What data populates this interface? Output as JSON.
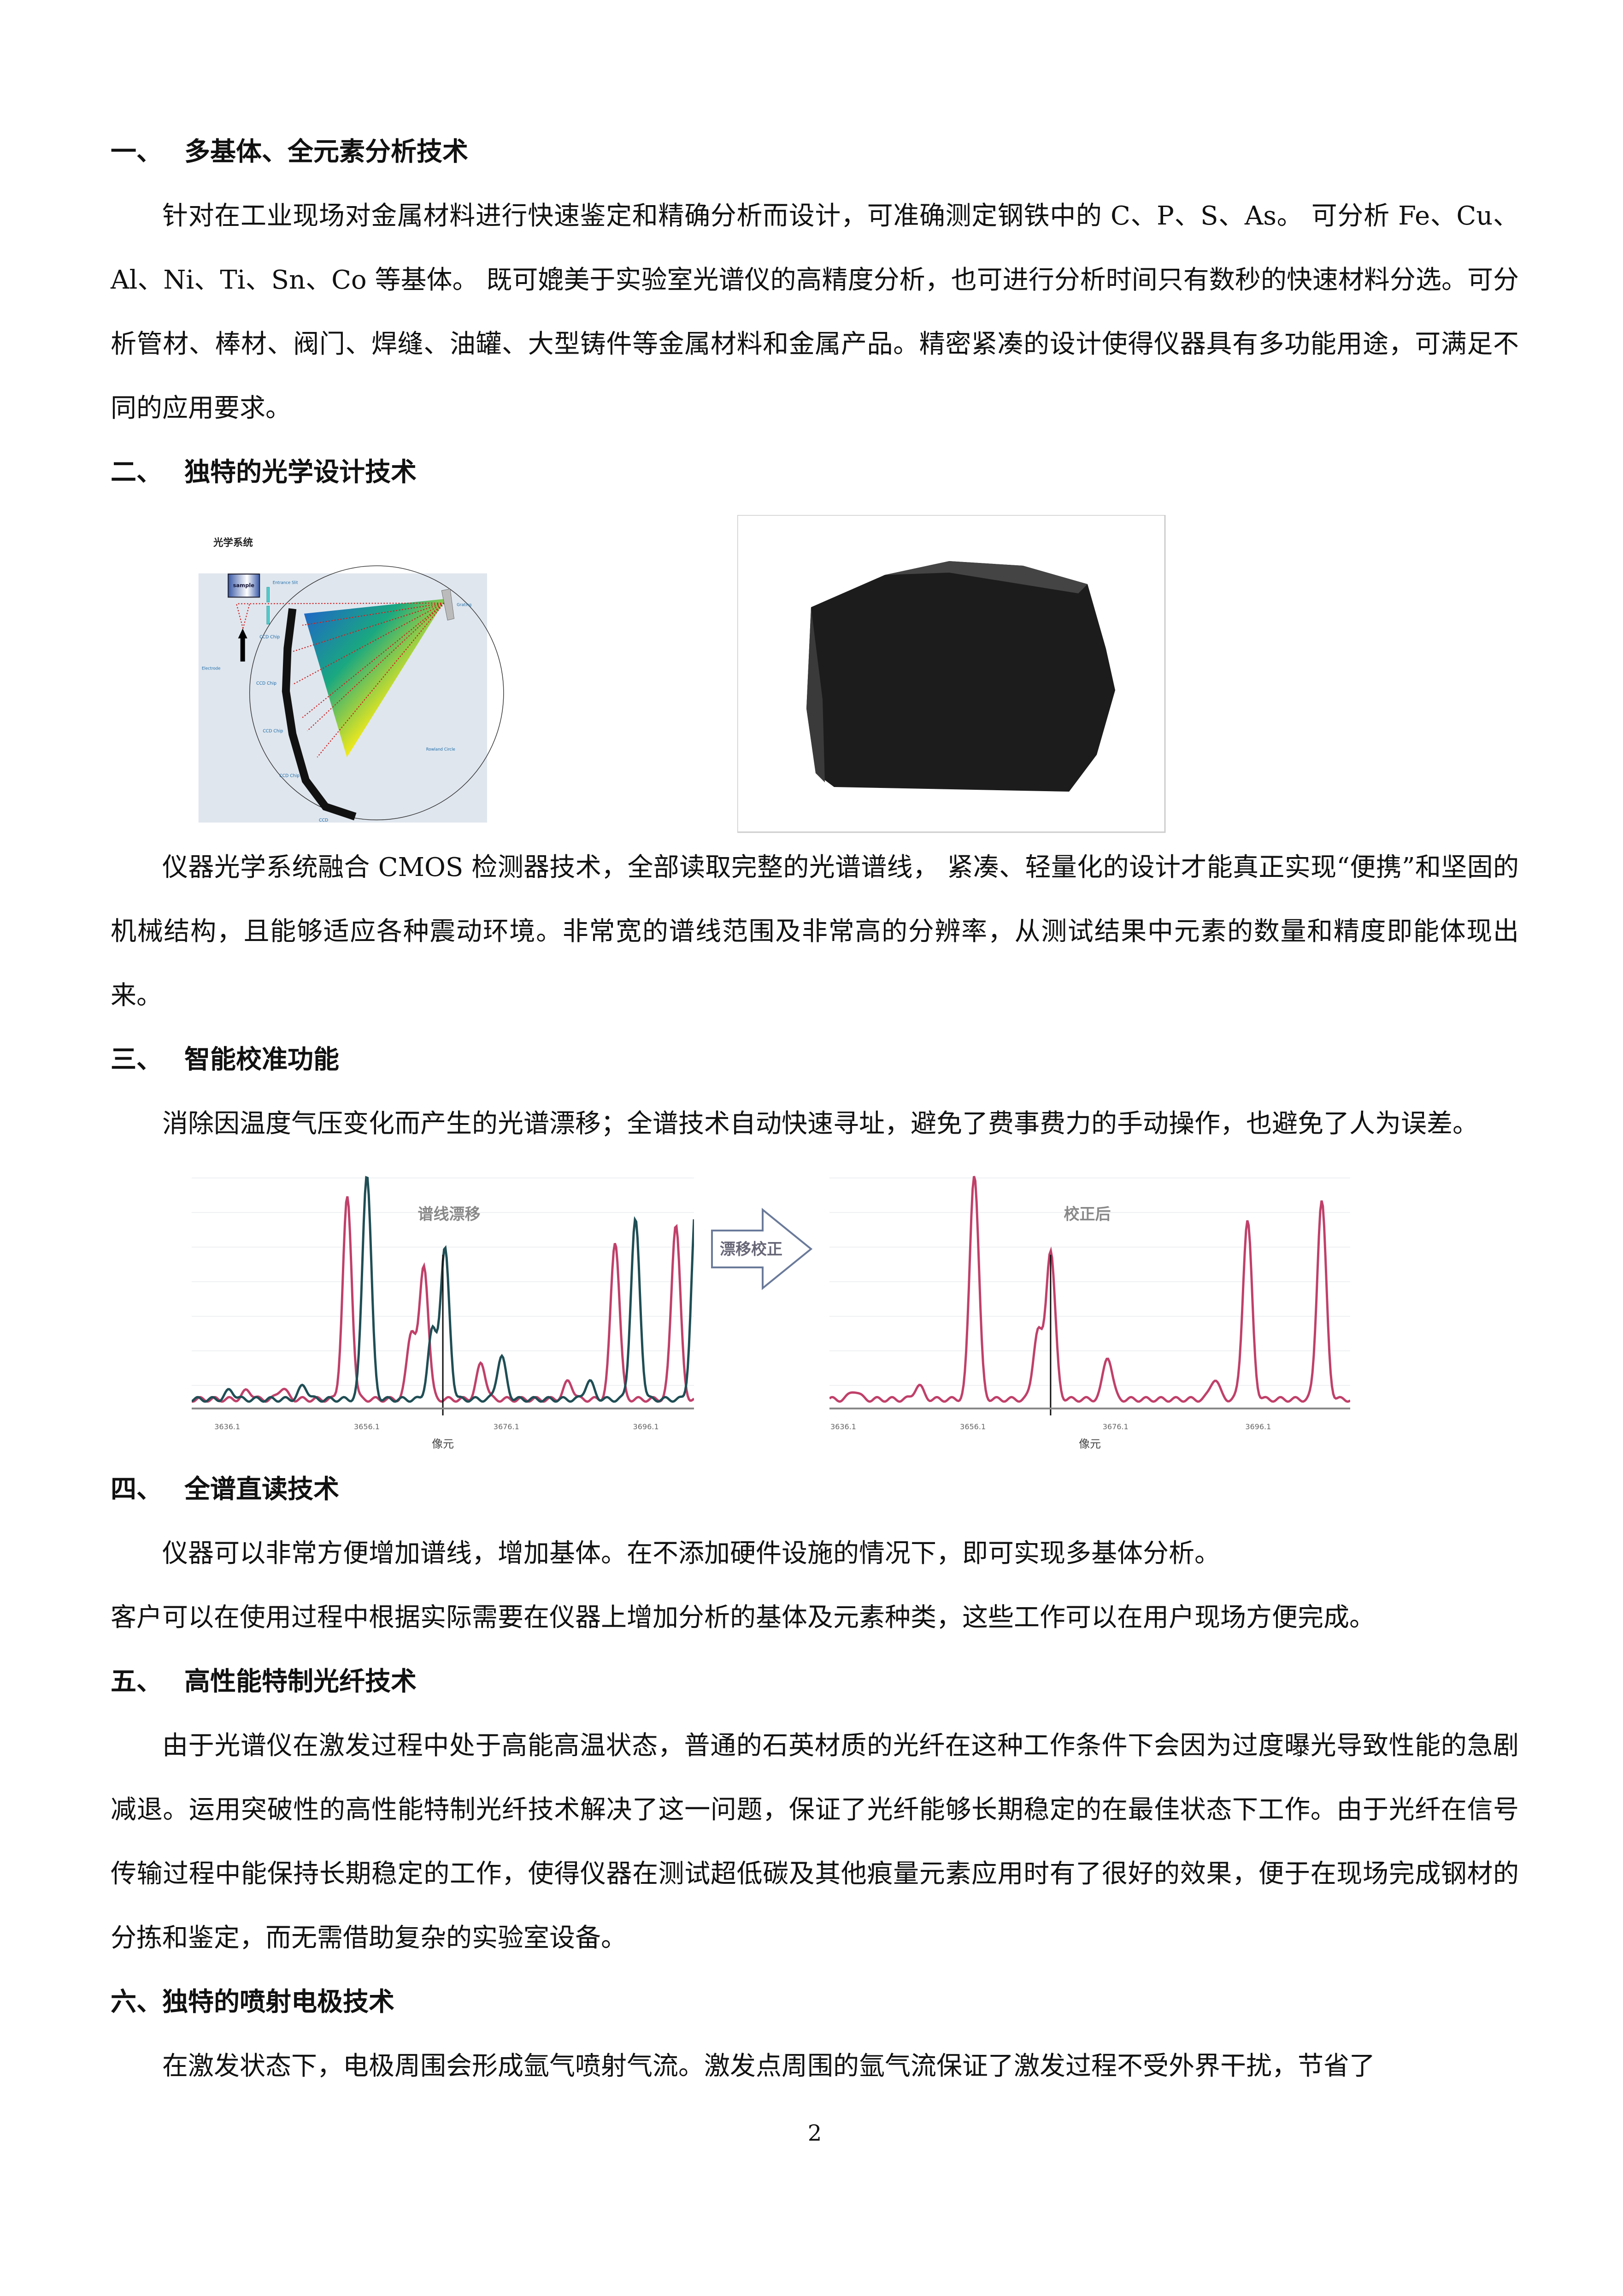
{
  "sections": [
    {
      "num": "一、",
      "title": "多基体、全元素分析技术",
      "paras": [
        "针对在工业现场对金属材料进行快速鉴定和精确分析而设计，可准确测定钢铁中的 C、P、S、As。 可分析 Fe、Cu、Al、Ni、Ti、Sn、Co 等基体。 既可媲美于实验室光谱仪的高精度分析，也可进行分析时间只有数秒的快速材料分选。可分析管材、棒材、阀门、焊缝、油罐、大型铸件等金属材料和金属产品。精密紧凑的设计使得仪器具有多功能用途，可满足不同的应用要求。"
      ]
    },
    {
      "num": "二、",
      "title": "独特的光学设计技术",
      "paras": [
        "仪器光学系统融合 CMOS 检测器技术，全部读取完整的光谱谱线， 紧凑、轻量化的设计才能真正实现“便携”和坚固的机械结构，且能够适应各种震动环境。非常宽的谱线范围及非常高的分辨率，从测试结果中元素的数量和精度即能体现出来。"
      ]
    },
    {
      "num": "三、",
      "title": "智能校准功能",
      "paras": [
        "消除因温度气压变化而产生的光谱漂移；全谱技术自动快速寻址，避免了费事费力的手动操作，也避免了人为误差。"
      ]
    },
    {
      "num": "四、",
      "title": "全谱直读技术",
      "paras": [
        "仪器可以非常方便增加谱线，增加基体。在不添加硬件设施的情况下，即可实现多基体分析。",
        "客户可以在使用过程中根据实际需要在仪器上增加分析的基体及元素种类，这些工作可以在用户现场方便完成。"
      ]
    },
    {
      "num": "五、",
      "title": "高性能特制光纤技术",
      "paras": [
        "由于光谱仪在激发过程中处于高能高温状态，普通的石英材质的光纤在这种工作条件下会因为过度曝光导致性能的急剧减退。运用突破性的高性能特制光纤技术解决了这一问题，保证了光纤能够长期稳定的在最佳状态下工作。由于光纤在信号传输过程中能保持长期稳定的工作，使得仪器在测试超低碳及其他痕量元素应用时有了很好的效果，便于在现场完成钢材的分拣和鉴定，而无需借助复杂的实验室设备。"
      ]
    },
    {
      "num": "六、",
      "title": "独特的喷射电极技术",
      "paras": [
        "在激发状态下，电极周围会形成氩气喷射气流。激发点周围的氩气流保证了激发过程不受外界干扰，节省了"
      ]
    }
  ],
  "optics_figure": {
    "title": "光学系统",
    "labels": {
      "sample": "sample",
      "slit": "Entrance Slit",
      "grating": "Grating",
      "electrode": "Electrode",
      "ccd": "CCD Chip",
      "ccd_last": "CCD",
      "rowland": "Rowland Circle"
    }
  },
  "chart_data": [
    {
      "type": "line",
      "title": "谱线漂移",
      "xlabel": "像元",
      "xticks": [
        "3636.1",
        "3656.1",
        "3676.1",
        "3696.1"
      ],
      "xlim": [
        3631,
        3703
      ],
      "series": [
        {
          "color": "#c0406a",
          "peaks": [
            [
              3639,
              0.04
            ],
            [
              3644,
              0.05
            ],
            [
              3653.3,
              0.89
            ],
            [
              3664.3,
              0.59
            ],
            [
              3662.5,
              0.3
            ],
            [
              3672.5,
              0.16
            ],
            [
              3685,
              0.08
            ],
            [
              3691.7,
              0.7
            ],
            [
              3700.4,
              0.78
            ]
          ]
        },
        {
          "color": "#1f4e55",
          "peaks": [
            [
              3636.5,
              0.04
            ],
            [
              3647,
              0.06
            ],
            [
              3656.1,
              1.0
            ],
            [
              3667.3,
              0.66
            ],
            [
              3665.5,
              0.3
            ],
            [
              3675.4,
              0.19
            ],
            [
              3688,
              0.08
            ],
            [
              3694.6,
              0.79
            ],
            [
              3703.3,
              0.88
            ]
          ]
        }
      ],
      "marker_x": 3667
    },
    {
      "type": "line",
      "title": "校正后",
      "xlabel": "像元",
      "xticks": [
        "3636.1",
        "3656.1",
        "3676.1",
        "3696.1"
      ],
      "xlim": [
        3636,
        3709
      ],
      "series": [
        {
          "color": "#c0406a",
          "peaks": [
            [
              3639.5,
              0.04
            ],
            [
              3648.5,
              0.06
            ],
            [
              3656.3,
              1.0
            ],
            [
              3667,
              0.66
            ],
            [
              3665.2,
              0.3
            ],
            [
              3675,
              0.19
            ],
            [
              3690,
              0.09
            ],
            [
              3694.6,
              0.79
            ],
            [
              3705,
              0.88
            ]
          ]
        }
      ],
      "marker_x": 3667
    }
  ],
  "arrow_label": "漂移校正",
  "page_number": "2"
}
